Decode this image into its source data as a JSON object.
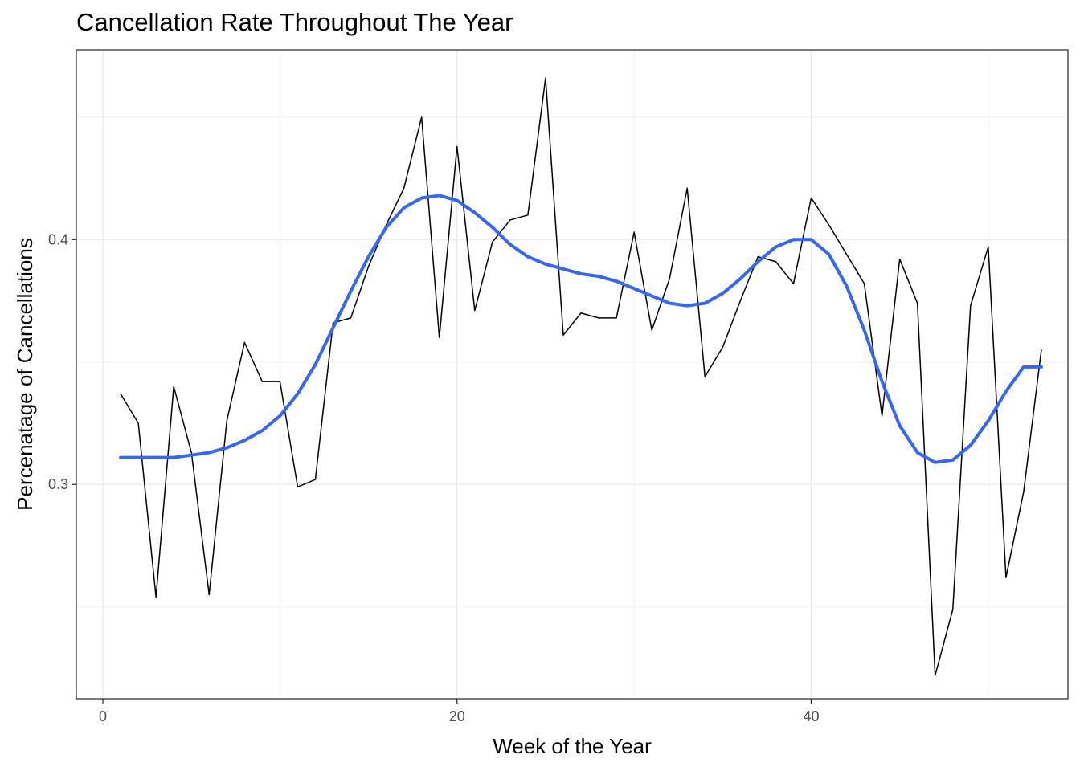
{
  "chart_data": {
    "type": "line",
    "title": "Cancellation Rate Throughout The Year",
    "xlabel": "Week of the Year",
    "ylabel": "Percenatage of Cancellations",
    "xlim": [
      -1.5,
      54.5
    ],
    "ylim": [
      0.2125,
      0.4775
    ],
    "x_ticks": [
      0,
      20,
      40
    ],
    "x_minor": [
      10,
      30,
      50
    ],
    "y_ticks": [
      0.3,
      0.4
    ],
    "y_tick_labels": [
      "0.3",
      "0.4"
    ],
    "y_minor": [
      0.25,
      0.35,
      0.45
    ],
    "grid": true,
    "legend": "none",
    "series": [
      {
        "x": [
          1,
          2,
          3,
          4,
          5,
          6,
          7,
          8,
          9,
          10,
          11,
          12,
          13,
          14,
          15,
          16,
          17,
          18,
          19,
          20,
          21,
          22,
          23,
          24,
          25,
          26,
          27,
          28,
          29,
          30,
          31,
          32,
          33,
          34,
          35,
          36,
          37,
          38,
          39,
          40,
          41,
          42,
          43,
          44,
          45,
          46,
          47,
          48,
          49,
          50,
          51,
          52,
          53
        ],
        "values": [
          0.337,
          0.325,
          0.254,
          0.34,
          0.313,
          0.255,
          0.326,
          0.358,
          0.342,
          0.342,
          0.299,
          0.302,
          0.366,
          0.368,
          0.389,
          0.406,
          0.421,
          0.45,
          0.36,
          0.438,
          0.371,
          0.399,
          0.408,
          0.41,
          0.466,
          0.361,
          0.37,
          0.368,
          0.368,
          0.403,
          0.363,
          0.384,
          0.421,
          0.344,
          0.356,
          0.375,
          0.393,
          0.391,
          0.382,
          0.417,
          0.406,
          0.394,
          0.382,
          0.328,
          0.392,
          0.374,
          0.222,
          0.249,
          0.373,
          0.397,
          0.262,
          0.297,
          0.355
        ],
        "color": "#000000"
      },
      {
        "x": [
          1,
          2,
          3,
          4,
          5,
          6,
          7,
          8,
          9,
          10,
          11,
          12,
          13,
          14,
          15,
          16,
          17,
          18,
          19,
          20,
          21,
          22,
          23,
          24,
          25,
          26,
          27,
          28,
          29,
          30,
          31,
          32,
          33,
          34,
          35,
          36,
          37,
          38,
          39,
          40,
          41,
          42,
          43,
          44,
          45,
          46,
          47,
          48,
          49,
          50,
          51,
          52,
          53
        ],
        "values": [
          0.311,
          0.311,
          0.311,
          0.311,
          0.312,
          0.313,
          0.315,
          0.318,
          0.322,
          0.328,
          0.337,
          0.349,
          0.364,
          0.379,
          0.393,
          0.405,
          0.413,
          0.417,
          0.418,
          0.416,
          0.411,
          0.405,
          0.398,
          0.393,
          0.39,
          0.388,
          0.386,
          0.385,
          0.383,
          0.38,
          0.377,
          0.374,
          0.373,
          0.374,
          0.378,
          0.384,
          0.391,
          0.397,
          0.4,
          0.4,
          0.394,
          0.381,
          0.363,
          0.342,
          0.324,
          0.313,
          0.309,
          0.31,
          0.316,
          0.326,
          0.338,
          0.348,
          0.348
        ],
        "color": "#3366FF"
      }
    ]
  }
}
